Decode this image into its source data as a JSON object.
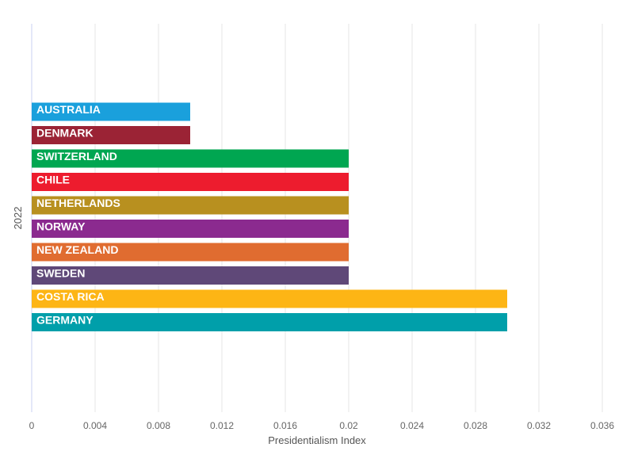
{
  "chart_data": {
    "type": "bar",
    "orientation": "horizontal",
    "title": "",
    "xlabel": "Presidentialism Index",
    "ylabel": "2022",
    "xlim": [
      0,
      0.036
    ],
    "xticks": [
      "0",
      "0.004",
      "0.008",
      "0.012",
      "0.016",
      "0.02",
      "0.024",
      "0.028",
      "0.032",
      "0.036"
    ],
    "grid": true,
    "categories": [
      "AUSTRALIA",
      "DENMARK",
      "SWITZERLAND",
      "CHILE",
      "NETHERLANDS",
      "NORWAY",
      "NEW ZEALAND",
      "SWEDEN",
      "COSTA RICA",
      "GERMANY"
    ],
    "values": [
      0.01,
      0.01,
      0.02,
      0.02,
      0.02,
      0.02,
      0.02,
      0.02,
      0.03,
      0.03
    ],
    "colors": [
      "#1aa0dc",
      "#9b2335",
      "#00a651",
      "#ed1c2e",
      "#b8901f",
      "#8b2a8f",
      "#e06c30",
      "#5f4878",
      "#fdb515",
      "#009faa"
    ]
  }
}
